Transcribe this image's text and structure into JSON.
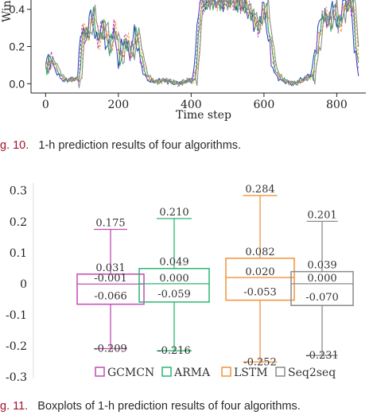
{
  "figure_top": {
    "ylabel": "Wind",
    "xlabel": "Time step",
    "xticks": [
      "0",
      "200",
      "400",
      "600",
      "800"
    ],
    "yticks": [
      "0.0",
      "0.2",
      "0.4"
    ],
    "caption_number": "g. 10.",
    "caption_text": "1-h prediction results of four algorithms."
  },
  "figure_bottom": {
    "yticks": [
      "-0.3",
      "-0.2",
      "-0.1",
      "0",
      "0.1",
      "0.2",
      "0.3"
    ],
    "caption_number": "g. 11.",
    "caption_text": "Boxplots of 1-h prediction results of four algorithms."
  },
  "chart_data": [
    {
      "type": "line",
      "xlabel": "Time step",
      "ylabel": "Wind",
      "xlim": [
        -40,
        880
      ],
      "ylim": [
        -0.05,
        0.45
      ],
      "x_key_points": [
        0,
        10,
        25,
        40,
        50,
        60,
        90,
        95,
        110,
        125,
        140,
        155,
        170,
        185,
        200,
        215,
        230,
        245,
        260,
        270,
        280,
        300,
        320,
        340,
        360,
        390,
        400,
        410,
        420,
        450,
        480,
        510,
        540,
        560,
        580,
        600,
        620,
        630,
        645,
        660,
        680,
        700,
        730,
        750,
        760,
        775,
        790,
        800,
        820,
        840,
        850,
        860
      ],
      "y_key_points": [
        0.1,
        0.14,
        0.08,
        0.03,
        0.02,
        0.02,
        0.03,
        0.3,
        0.25,
        0.38,
        0.22,
        0.33,
        0.18,
        0.3,
        0.12,
        0.25,
        0.15,
        0.28,
        0.12,
        0.05,
        0.02,
        0.01,
        0.02,
        0.01,
        0.0,
        0.02,
        0.01,
        0.1,
        0.42,
        0.45,
        0.44,
        0.45,
        0.42,
        0.38,
        0.3,
        0.42,
        0.12,
        0.05,
        0.02,
        0.01,
        0.0,
        0.02,
        0.05,
        0.3,
        0.38,
        0.32,
        0.42,
        0.3,
        0.44,
        0.42,
        0.15,
        0.05
      ],
      "series": [
        {
          "name": "",
          "color": "#1f3fb4"
        },
        {
          "name": "",
          "color": "#c83dbf"
        },
        {
          "name": "",
          "color": "#29a85a"
        },
        {
          "name": "",
          "color": "#f09a2a"
        },
        {
          "name": "",
          "color": "#888888"
        }
      ]
    },
    {
      "type": "box",
      "ylim": [
        -0.3,
        0.33
      ],
      "series": [
        {
          "name": "GCMCN",
          "color": "#c24cb0",
          "min": -0.209,
          "q1": -0.066,
          "median": -0.001,
          "q3": 0.031,
          "max": 0.175,
          "labels": {
            "max": "0.175",
            "q3": "0.031",
            "median": "-0.001",
            "q1": "-0.066",
            "min": "-0.209"
          }
        },
        {
          "name": "ARMA",
          "color": "#2bb673",
          "min": -0.216,
          "q1": -0.059,
          "median": 0.0,
          "q3": 0.049,
          "max": 0.21,
          "labels": {
            "max": "0.210",
            "q3": "0.049",
            "median": "0.000",
            "q1": "-0.059",
            "min": "-0.216"
          }
        },
        {
          "name": "LSTM",
          "color": "#f2923a",
          "min": -0.252,
          "q1": -0.053,
          "median": 0.02,
          "q3": 0.082,
          "max": 0.284,
          "labels": {
            "max": "0.284",
            "q3": "0.082",
            "median": "0.020",
            "q1": "-0.053",
            "min": "-0.252"
          }
        },
        {
          "name": "Seq2seq",
          "color": "#8a8a8a",
          "min": -0.231,
          "q1": -0.07,
          "median": 0.0,
          "q3": 0.039,
          "max": 0.201,
          "labels": {
            "max": "0.201",
            "q3": "0.039",
            "median": "0.000",
            "q1": "-0.070",
            "min": "-0.231"
          }
        }
      ],
      "legend": "bottom"
    }
  ]
}
